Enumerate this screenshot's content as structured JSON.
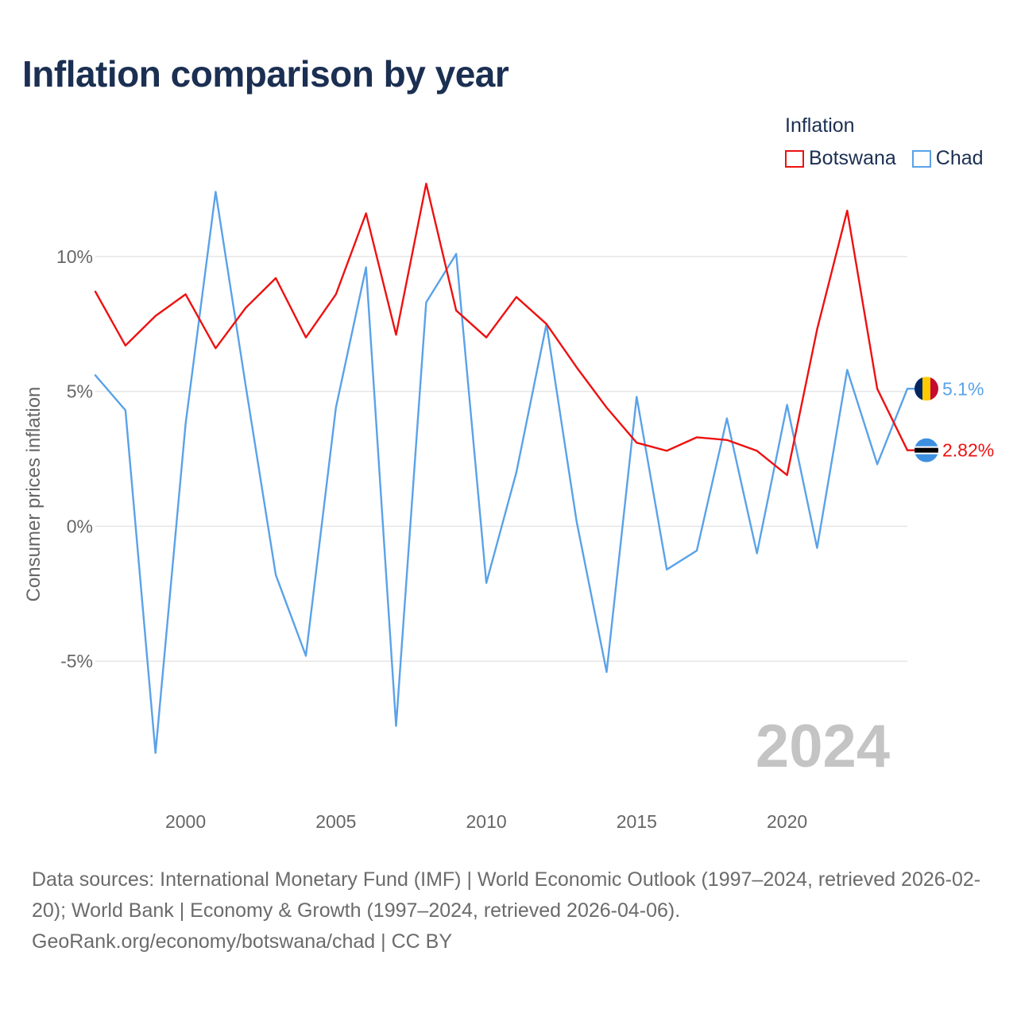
{
  "title": "Inflation comparison by year",
  "legend": {
    "title": "Inflation",
    "items": [
      {
        "name": "Botswana",
        "color": "#ee1111"
      },
      {
        "name": "Chad",
        "color": "#5aa2e8"
      }
    ]
  },
  "year_watermark": "2024",
  "footer": {
    "sources": "Data sources: International Monetary Fund (IMF) | World Economic Outlook (1997–2024, retrieved 2026-02-20); World Bank | Economy & Growth (1997–2024, retrieved 2026-04-06).",
    "credit": "GeoRank.org/economy/botswana/chad | CC BY"
  },
  "chart_data": {
    "type": "line",
    "title": "Inflation comparison by year",
    "xlabel": "",
    "ylabel": "Consumer prices inflation",
    "x": [
      1997,
      1998,
      1999,
      2000,
      2001,
      2002,
      2003,
      2004,
      2005,
      2006,
      2007,
      2008,
      2009,
      2010,
      2011,
      2012,
      2013,
      2014,
      2015,
      2016,
      2017,
      2018,
      2019,
      2020,
      2021,
      2022,
      2023,
      2024
    ],
    "xlim": [
      1997,
      2024
    ],
    "ylim": [
      -10,
      13
    ],
    "xticks": [
      2000,
      2005,
      2010,
      2015,
      2020
    ],
    "yticks": [
      -5,
      0,
      5,
      10
    ],
    "ytick_labels": [
      "-5%",
      "0%",
      "5%",
      "10%"
    ],
    "grid": true,
    "series": [
      {
        "name": "Botswana",
        "color": "#ee1111",
        "values": [
          8.7,
          6.7,
          7.8,
          8.6,
          6.6,
          8.1,
          9.2,
          7.0,
          8.6,
          11.6,
          7.1,
          12.7,
          8.0,
          7.0,
          8.5,
          7.5,
          5.9,
          4.4,
          3.1,
          2.8,
          3.3,
          3.2,
          2.8,
          1.9,
          7.3,
          11.7,
          5.1,
          2.82
        ],
        "end_label": "2.82%",
        "flag": "botswana"
      },
      {
        "name": "Chad",
        "color": "#5aa2e8",
        "values": [
          5.6,
          4.3,
          -8.4,
          3.8,
          12.4,
          5.2,
          -1.8,
          -4.8,
          4.4,
          9.6,
          -7.4,
          8.3,
          10.1,
          -2.1,
          2.0,
          7.5,
          0.2,
          -5.4,
          4.8,
          -1.6,
          -0.9,
          4.0,
          -1.0,
          4.5,
          -0.8,
          5.8,
          2.3,
          5.1
        ],
        "end_label": "5.1%",
        "flag": "chad"
      }
    ]
  }
}
